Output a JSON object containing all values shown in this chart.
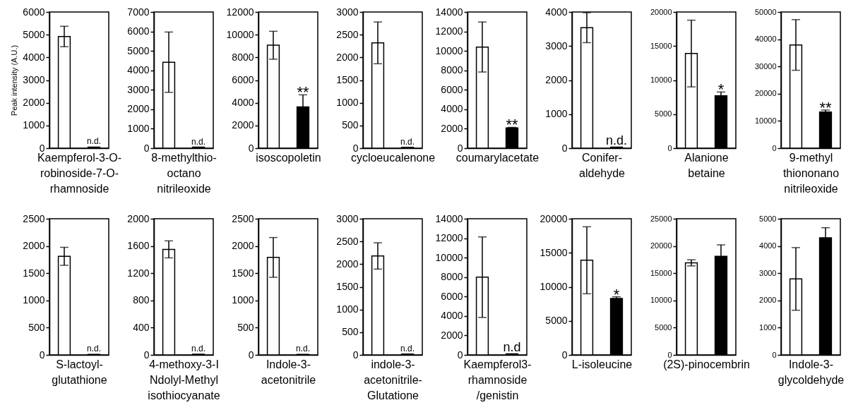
{
  "chart_data": [
    {
      "type": "bar",
      "categories": [
        null,
        null
      ],
      "values": [
        4920,
        50
      ],
      "colors": [
        "#ffffff",
        "#000000"
      ],
      "errors": [
        450,
        null
      ],
      "value_labels": [
        null,
        "n.d."
      ],
      "xlabel": "Kaempferol-3-O-\nrobinoside-7-O-\nrhamnoside",
      "ylabel": "Peak intensity (A.U.)",
      "ylim": [
        0,
        6000
      ],
      "yticks": [
        0,
        1000,
        2000,
        3000,
        4000,
        5000,
        6000
      ],
      "tick_labels": "y"
    },
    {
      "type": "bar",
      "categories": [
        null,
        null
      ],
      "values": [
        4420,
        50
      ],
      "colors": [
        "#ffffff",
        "#000000"
      ],
      "errors": [
        1550,
        null
      ],
      "value_labels": [
        null,
        "n.d."
      ],
      "xlabel": "8-methylthio-\noctano\nnitrileoxide",
      "ylim": [
        0,
        7000
      ],
      "yticks": [
        0,
        1000,
        2000,
        3000,
        4000,
        5000,
        6000,
        7000
      ],
      "tick_labels": "y"
    },
    {
      "type": "bar",
      "categories": [
        null,
        null
      ],
      "values": [
        9070,
        3640
      ],
      "colors": [
        "#ffffff",
        "#000000"
      ],
      "errors": [
        1230,
        1060
      ],
      "value_labels": [
        null,
        "**"
      ],
      "xlabel": "isoscopoletin",
      "ylim": [
        0,
        12000
      ],
      "yticks": [
        0,
        2000,
        4000,
        6000,
        8000,
        10000,
        12000
      ],
      "tick_labels": "y"
    },
    {
      "type": "bar",
      "categories": [
        null,
        null
      ],
      "values": [
        2320,
        20
      ],
      "colors": [
        "#ffffff",
        "#000000"
      ],
      "errors": [
        460,
        null
      ],
      "value_labels": [
        null,
        "n.d."
      ],
      "xlabel": "cycloeucalenone",
      "ylim": [
        0,
        3000
      ],
      "yticks": [
        0,
        500,
        1000,
        1500,
        2000,
        2500,
        3000
      ],
      "tick_labels": "y"
    },
    {
      "type": "bar",
      "categories": [
        null,
        null
      ],
      "values": [
        10400,
        2080
      ],
      "colors": [
        "#ffffff",
        "#000000"
      ],
      "errors": [
        2570,
        60
      ],
      "value_labels": [
        null,
        "**"
      ],
      "xlabel": "coumarylacetate",
      "ylim": [
        0,
        14000
      ],
      "yticks": [
        0,
        2000,
        4000,
        6000,
        8000,
        10000,
        12000,
        14000
      ],
      "tick_labels": "y"
    },
    {
      "type": "bar",
      "categories": [
        null,
        null
      ],
      "values": [
        3540,
        30
      ],
      "colors": [
        "#ffffff",
        "#000000"
      ],
      "errors": [
        440,
        null
      ],
      "value_labels": [
        null,
        "n.d."
      ],
      "xlabel": "Conifer-\naldehyde",
      "ylim": [
        0,
        4000
      ],
      "yticks": [
        0,
        1000,
        2000,
        3000,
        4000
      ],
      "tick_labels": "y"
    },
    {
      "type": "bar",
      "categories": [
        null,
        null
      ],
      "values": [
        13900,
        7700
      ],
      "colors": [
        "#ffffff",
        "#000000"
      ],
      "errors": [
        4900,
        550
      ],
      "value_labels": [
        null,
        "*"
      ],
      "xlabel": "Alanione\nbetaine",
      "ylim": [
        0,
        20000
      ],
      "yticks": [
        0,
        5000,
        10000,
        15000,
        20000
      ],
      "tick_labels": "y"
    },
    {
      "type": "bar",
      "categories": [
        null,
        null
      ],
      "values": [
        37900,
        13300
      ],
      "colors": [
        "#ffffff",
        "#000000"
      ],
      "errors": [
        9300,
        700
      ],
      "value_labels": [
        null,
        "**"
      ],
      "xlabel": "9-methyl\nthiononano\nnitrileoxide",
      "ylim": [
        0,
        50000
      ],
      "yticks": [
        0,
        10000,
        20000,
        30000,
        40000,
        50000
      ],
      "tick_labels": "y"
    },
    {
      "type": "bar",
      "categories": [
        null,
        null
      ],
      "values": [
        1810,
        10
      ],
      "colors": [
        "#ffffff",
        "#000000"
      ],
      "errors": [
        165,
        null
      ],
      "value_labels": [
        null,
        "n.d."
      ],
      "xlabel": "S-lactoyl-\nglutathione",
      "ylim": [
        0,
        2500
      ],
      "yticks": [
        0,
        500,
        1000,
        1500,
        2000,
        2500
      ],
      "tick_labels": "y"
    },
    {
      "type": "bar",
      "categories": [
        null,
        null
      ],
      "values": [
        1550,
        10
      ],
      "colors": [
        "#ffffff",
        "#000000"
      ],
      "errors": [
        125,
        null
      ],
      "value_labels": [
        null,
        "n.d."
      ],
      "xlabel": "4-methoxy-3-I\nNdolyl-Methyl\nisothiocyanate",
      "ylim": [
        0,
        2000
      ],
      "yticks": [
        0,
        400,
        800,
        1200,
        1600,
        2000
      ],
      "tick_labels": "y"
    },
    {
      "type": "bar",
      "categories": [
        null,
        null
      ],
      "values": [
        1790,
        10
      ],
      "colors": [
        "#ffffff",
        "#000000"
      ],
      "errors": [
        365,
        null
      ],
      "value_labels": [
        null,
        "n.d."
      ],
      "xlabel": "Indole-3-\nacetonitrile",
      "ylim": [
        0,
        2500
      ],
      "yticks": [
        0,
        500,
        1000,
        1500,
        2000,
        2500
      ],
      "tick_labels": "y"
    },
    {
      "type": "bar",
      "categories": [
        null,
        null
      ],
      "values": [
        2180,
        20
      ],
      "colors": [
        "#ffffff",
        "#000000"
      ],
      "errors": [
        290,
        null
      ],
      "value_labels": [
        null,
        "n.d."
      ],
      "xlabel": "indole-3-\nacetonitrile-\nGlutatione",
      "ylim": [
        0,
        3000
      ],
      "yticks": [
        0,
        500,
        1000,
        1500,
        2000,
        2500,
        3000
      ],
      "tick_labels": "y"
    },
    {
      "type": "bar",
      "categories": [
        null,
        null
      ],
      "values": [
        7990,
        100
      ],
      "colors": [
        "#ffffff",
        "#000000"
      ],
      "errors": [
        4140,
        null
      ],
      "value_labels": [
        null,
        "n.d"
      ],
      "xlabel": "Kaempferol3-\nrhamnoside\n/genistin",
      "ylim": [
        0,
        14000
      ],
      "yticks": [
        0,
        2000,
        4000,
        6000,
        8000,
        10000,
        12000,
        14000
      ],
      "tick_labels": "y"
    },
    {
      "type": "bar",
      "categories": [
        null,
        null
      ],
      "values": [
        13900,
        8300
      ],
      "colors": [
        "#ffffff",
        "#000000"
      ],
      "errors": [
        4920,
        240
      ],
      "value_labels": [
        null,
        "*"
      ],
      "xlabel": "L-isoleucine",
      "ylim": [
        0,
        20000
      ],
      "yticks": [
        0,
        5000,
        10000,
        15000,
        20000
      ],
      "tick_labels": "y"
    },
    {
      "type": "bar",
      "categories": [
        null,
        null
      ],
      "values": [
        16900,
        18100
      ],
      "colors": [
        "#ffffff",
        "#000000"
      ],
      "errors": [
        560,
        2100
      ],
      "xlabel": "(2S)-pinocembrin",
      "ylim": [
        0,
        25000
      ],
      "yticks": [
        0,
        5000,
        10000,
        15000,
        20000,
        25000
      ],
      "tick_labels": "y"
    },
    {
      "type": "bar",
      "categories": [
        null,
        null
      ],
      "values": [
        2790,
        4300
      ],
      "colors": [
        "#ffffff",
        "#000000"
      ],
      "errors": [
        1150,
        370
      ],
      "xlabel": "Indole-3-\nglycoldehyde",
      "ylim": [
        0,
        5000
      ],
      "yticks": [
        0,
        1000,
        2000,
        3000,
        4000,
        5000
      ],
      "tick_labels": "y"
    }
  ]
}
